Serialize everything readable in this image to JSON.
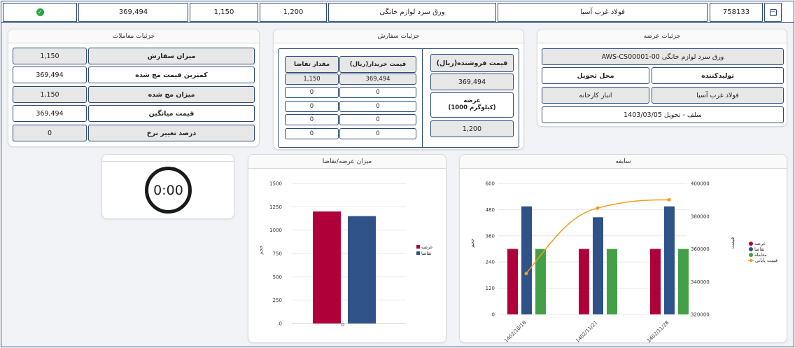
{
  "topbar": {
    "id": "758133",
    "supplier": "فولاد غرب آسیا",
    "product": "ورق سرد لوازم خانگی",
    "v1": "1,200",
    "v2": "1,150",
    "v3": "369,494"
  },
  "offer": {
    "title": "جزئیات عرضه",
    "code": "AWS-CS00001-00 ورق سرد لوازم خانگی",
    "producer_label": "تولیدکننده",
    "delivery_label": "محل تحویل",
    "producer": "فولاد غرب آسیا",
    "delivery": "انبار کارخانه",
    "terms": "سلف - تحویل 1403/03/05"
  },
  "order": {
    "title": "جزئیات سفارش",
    "seller_price_label": "قیمت فروشنده(ریال)",
    "seller_price": "369,494",
    "supply_label": "عرضه\n(1000 کیلوگرم)",
    "supply": "1,200",
    "buyer_price_label": "قیمت خریدار(ریال)",
    "demand_label": "مقدار تقاضا",
    "rows": [
      {
        "price": "369,494",
        "qty": "1,150"
      },
      {
        "price": "0",
        "qty": "0"
      },
      {
        "price": "0",
        "qty": "0"
      },
      {
        "price": "0",
        "qty": "0"
      },
      {
        "price": "0",
        "qty": "0"
      }
    ]
  },
  "trades": {
    "title": "جزئیات معاملات",
    "rows": [
      {
        "label": "میزان سفارش",
        "value": "1,150"
      },
      {
        "label": "کمترین قیمت مچ شده",
        "value": "369,494"
      },
      {
        "label": "میزان مچ شده",
        "value": "1,150"
      },
      {
        "label": "قیمت میانگین",
        "value": "369,494"
      },
      {
        "label": "درصد تغییر نرخ",
        "value": "0"
      }
    ]
  },
  "timer": {
    "value": "0:00"
  },
  "colors": {
    "offer": "#b0003a",
    "demand": "#2f5289",
    "trade": "#43a047",
    "price": "#f29b1d"
  },
  "supply_chart": {
    "title": "میزان عرضه/تقاضا",
    "ylabel": "حجم",
    "legend": [
      "عرضه",
      "تقاضا"
    ],
    "ticks": [
      "1500",
      "1250",
      "1000",
      "750",
      "500",
      "250",
      "0"
    ],
    "xtick": "0"
  },
  "history_chart": {
    "title": "سابقه",
    "ylabel_left": "حجم",
    "ylabel_right": "قیمت",
    "legend": [
      "عرضه",
      "تقاضا",
      "معامله",
      "قیمت پایانی"
    ],
    "left_ticks": [
      "600",
      "480",
      "360",
      "240",
      "120",
      "0"
    ],
    "right_ticks": [
      "400000",
      "380000",
      "360000",
      "340000",
      "320000"
    ],
    "xticks": [
      "1402/10/16",
      "1402/11/21",
      "1402/11/28"
    ]
  },
  "chart_data": [
    {
      "type": "bar",
      "title": "میزان عرضه/تقاضا",
      "ylabel": "حجم",
      "categories": [
        "0"
      ],
      "series": [
        {
          "name": "عرضه",
          "values": [
            1200
          ]
        },
        {
          "name": "تقاضا",
          "values": [
            1150
          ]
        }
      ],
      "ylim": [
        0,
        1500
      ],
      "legend": "right"
    },
    {
      "type": "bar",
      "title": "سابقه",
      "ylabel": "حجم",
      "categories": [
        "1402/10/16",
        "1402/11/21",
        "1402/11/28"
      ],
      "series": [
        {
          "name": "عرضه",
          "values": [
            300,
            300,
            300
          ]
        },
        {
          "name": "تقاضا",
          "values": [
            495,
            445,
            495
          ]
        },
        {
          "name": "معامله",
          "values": [
            300,
            300,
            300
          ]
        },
        {
          "name": "قیمت پایانی",
          "values": [
            345000,
            385000,
            390000
          ]
        }
      ],
      "ylim": [
        0,
        600
      ],
      "y2lim": [
        320000,
        400000
      ],
      "legend": "right"
    }
  ]
}
